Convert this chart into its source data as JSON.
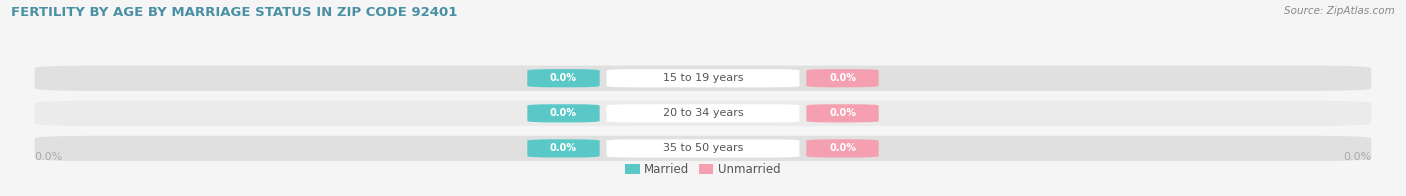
{
  "title": "FERTILITY BY AGE BY MARRIAGE STATUS IN ZIP CODE 92401",
  "source": "Source: ZipAtlas.com",
  "categories": [
    "15 to 19 years",
    "20 to 34 years",
    "35 to 50 years"
  ],
  "married_values": [
    0.0,
    0.0,
    0.0
  ],
  "unmarried_values": [
    0.0,
    0.0,
    0.0
  ],
  "married_color": "#5bc8c8",
  "unmarried_color": "#f4a0b0",
  "bar_bg_color": "#e0e0e0",
  "bar_bg_color2": "#ebebeb",
  "title_color": "#4a90a4",
  "source_color": "#888888",
  "label_color": "#555555",
  "axis_label_color": "#aaaaaa",
  "legend_label_color": "#555555",
  "figsize": [
    14.06,
    1.96
  ],
  "dpi": 100,
  "bg_color": "#f5f5f5"
}
